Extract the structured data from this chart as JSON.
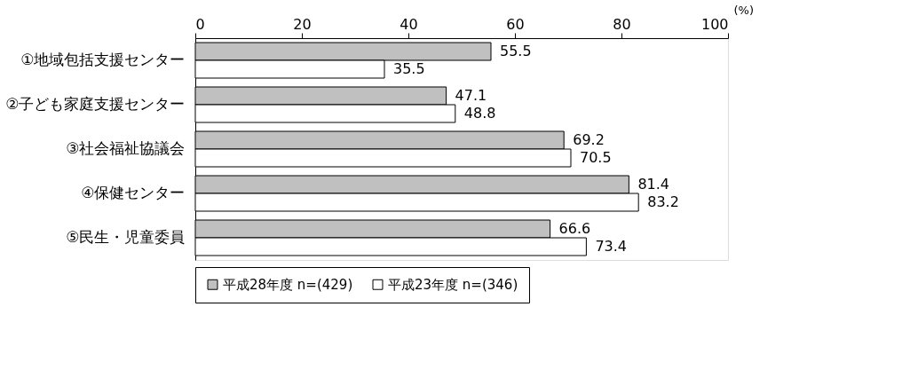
{
  "chart_data": {
    "type": "bar",
    "orientation": "horizontal",
    "xlabel": "(%)",
    "categories": [
      "①地域包括支援センター",
      "②子ども家庭支援センター",
      "③社会福祉協議会",
      "④保健センター",
      "⑤民生・児童委員"
    ],
    "series": [
      {
        "name": "平成28年度 n=(429)",
        "color": "#c0c0c0",
        "values": [
          55.5,
          47.1,
          69.2,
          81.4,
          66.6
        ]
      },
      {
        "name": "平成23年度 n=(346)",
        "color": "#ffffff",
        "values": [
          35.5,
          48.8,
          70.5,
          83.2,
          73.4
        ]
      }
    ],
    "xlim": [
      0,
      100
    ],
    "xticks": [
      0,
      20,
      40,
      60,
      80,
      100
    ],
    "data_labels": true,
    "grid": false,
    "legend": "bottom"
  }
}
